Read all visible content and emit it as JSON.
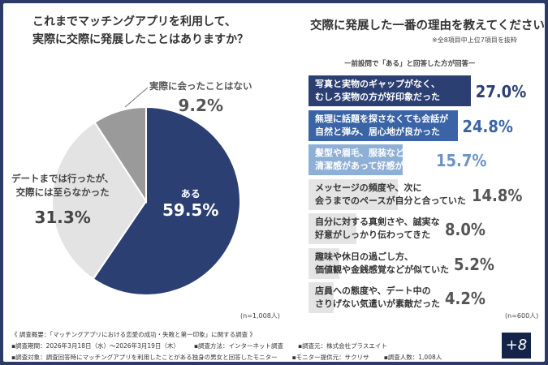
{
  "left": {
    "question": [
      "これまでマッチングアプリを利用して、",
      "実際に交際に発展したことはありますか？"
    ],
    "n": "(n=1,008人)"
  },
  "right": {
    "question": "交際に発展した一番の理由を教えてください",
    "note": "※全8項目中上位7項目を抜粋",
    "subtitle": "ー前設問で「ある」と回答した方が回答ー",
    "n": "(n=600人)"
  },
  "colors": {
    "navy": "#2b3f73",
    "blue1": "#2f4f8e",
    "blue2": "#3d6db0",
    "blue3": "#8fb0d6",
    "gray": "#e4e4e4",
    "pie_gray": "#9a9a9a",
    "pie_light": "#e3e3e3"
  },
  "chart_data": [
    {
      "type": "pie",
      "slices": [
        {
          "label": "ある",
          "value": 59.5,
          "display": "59.5%",
          "color": "#2b3f73"
        },
        {
          "label": "デートまでは行ったが、交際には至らなかった",
          "line1": "デートまでは行ったが、",
          "line2": "交際には至らなかった",
          "value": 31.3,
          "display": "31.3%",
          "color": "#e3e3e3"
        },
        {
          "label": "実際に会ったことはない",
          "value": 9.2,
          "display": "9.2%",
          "color": "#9a9a9a"
        }
      ]
    },
    {
      "type": "bar",
      "orientation": "horizontal",
      "series": [
        {
          "values": [
            27.0,
            24.8,
            15.7,
            14.8,
            8.0,
            5.2,
            4.2
          ]
        }
      ],
      "categories": [
        {
          "line1": "写真と実物のギャップがなく、",
          "line2": "むしろ実物の方が好印象だった",
          "display": "27.0%",
          "color": "#2b3f73",
          "valcolor": "#2b3f73",
          "text": "#fff"
        },
        {
          "line1": "無理に話題を探さなくても会話が",
          "line2": "自然と弾み、居心地が良かった",
          "display": "24.8%",
          "color": "#3a64a6",
          "valcolor": "#3a64a6",
          "text": "#fff"
        },
        {
          "line1": "髪型や眉毛、服装などに",
          "line2": "清潔感があって好感が持てた",
          "display": "15.7%",
          "color": "#8fb0d6",
          "valcolor": "#6c93c6",
          "text": "#fff"
        },
        {
          "line1": "メッセージの頻度や、次に",
          "line2": "会うまでのペースが自分と合っていた",
          "display": "14.8%",
          "color": "#e4e4e4",
          "valcolor": "#555",
          "text": "#333"
        },
        {
          "line1": "自分に対する真剣さや、誠実な",
          "line2": "好意がしっかり伝わってきた",
          "display": "8.0%",
          "color": "#e4e4e4",
          "valcolor": "#555",
          "text": "#333"
        },
        {
          "line1": "趣味や休日の過ごし方、",
          "line2": "価値観や金銭感覚などが似ていた",
          "display": "5.2%",
          "color": "#e4e4e4",
          "valcolor": "#555",
          "text": "#333"
        },
        {
          "line1": "店員への態度や、デート中の",
          "line2": "さりげない気遣いが素敵だった",
          "display": "4.2%",
          "color": "#e4e4e4",
          "valcolor": "#555",
          "text": "#333"
        }
      ]
    }
  ],
  "footer": {
    "title": "《 調査概要：「マッチングアプリにおける恋愛の成功・失敗と第一印象」に関する調査 》",
    "row1": [
      "▪調査期間：2026年3月18日（水）～2026年3月19日（木）",
      "▪調査方法：インターネット調査",
      "▪調査元：株式会社プラスエイト"
    ],
    "row2": [
      "▪調査対象：調査回答時にマッチングアプリを利用したことがある独身の男女と回答したモニター",
      "▪モニター提供元：サクリサ",
      "▪調査人数：1,008人"
    ],
    "logo": "+8"
  }
}
